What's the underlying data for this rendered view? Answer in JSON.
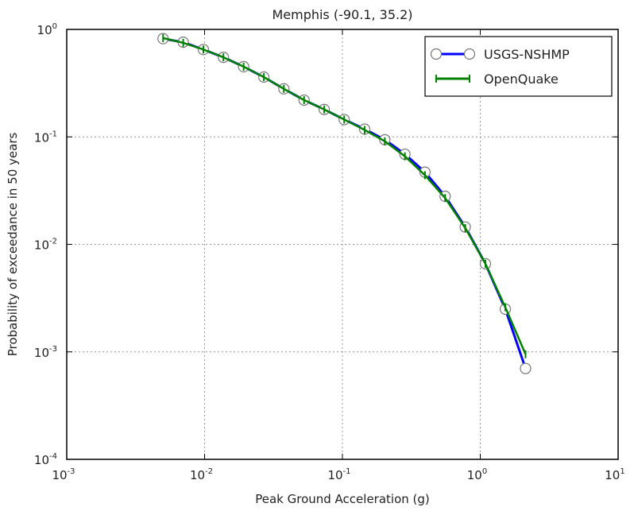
{
  "chart_data": {
    "type": "line",
    "title": "Memphis (-90.1, 35.2)",
    "xlabel": "Peak Ground Acceleration (g)",
    "ylabel": "Probability of exceedance in 50 years",
    "xscale": "log",
    "yscale": "log",
    "xlim": [
      0.001,
      10
    ],
    "ylim": [
      0.0001,
      1
    ],
    "x_ticks": [
      {
        "base": "10",
        "exp": "-3",
        "value": 0.001
      },
      {
        "base": "10",
        "exp": "-2",
        "value": 0.01
      },
      {
        "base": "10",
        "exp": "-1",
        "value": 0.1
      },
      {
        "base": "10",
        "exp": "0",
        "value": 1
      },
      {
        "base": "10",
        "exp": "1",
        "value": 10
      }
    ],
    "y_ticks": [
      {
        "base": "10",
        "exp": "-4",
        "value": 0.0001
      },
      {
        "base": "10",
        "exp": "-3",
        "value": 0.001
      },
      {
        "base": "10",
        "exp": "-2",
        "value": 0.01
      },
      {
        "base": "10",
        "exp": "-1",
        "value": 0.1
      },
      {
        "base": "10",
        "exp": "0",
        "value": 1
      }
    ],
    "grid": true,
    "legend_position": "top-right",
    "series": [
      {
        "name": "USGS-NSHMP",
        "color": "#0000ff",
        "marker": "open-circle",
        "x": [
          0.005,
          0.007,
          0.0098,
          0.0137,
          0.0192,
          0.0269,
          0.0376,
          0.0527,
          0.0738,
          0.103,
          0.145,
          0.203,
          0.284,
          0.397,
          0.556,
          0.778,
          1.09,
          1.52,
          2.13
        ],
        "y": [
          0.82,
          0.76,
          0.65,
          0.55,
          0.45,
          0.36,
          0.28,
          0.22,
          0.18,
          0.145,
          0.118,
          0.094,
          0.069,
          0.047,
          0.028,
          0.0145,
          0.0066,
          0.0025,
          0.0007
        ]
      },
      {
        "name": "OpenQuake",
        "color": "#008000",
        "marker": "plus",
        "x": [
          0.005,
          0.007,
          0.0098,
          0.0137,
          0.0192,
          0.0269,
          0.0376,
          0.0527,
          0.0738,
          0.103,
          0.145,
          0.203,
          0.284,
          0.397,
          0.556,
          0.778,
          1.09,
          1.52,
          2.13
        ],
        "y": [
          0.83,
          0.75,
          0.65,
          0.55,
          0.45,
          0.36,
          0.28,
          0.22,
          0.18,
          0.145,
          0.116,
          0.091,
          0.066,
          0.044,
          0.027,
          0.0142,
          0.0066,
          0.0026,
          0.00095
        ]
      }
    ]
  }
}
